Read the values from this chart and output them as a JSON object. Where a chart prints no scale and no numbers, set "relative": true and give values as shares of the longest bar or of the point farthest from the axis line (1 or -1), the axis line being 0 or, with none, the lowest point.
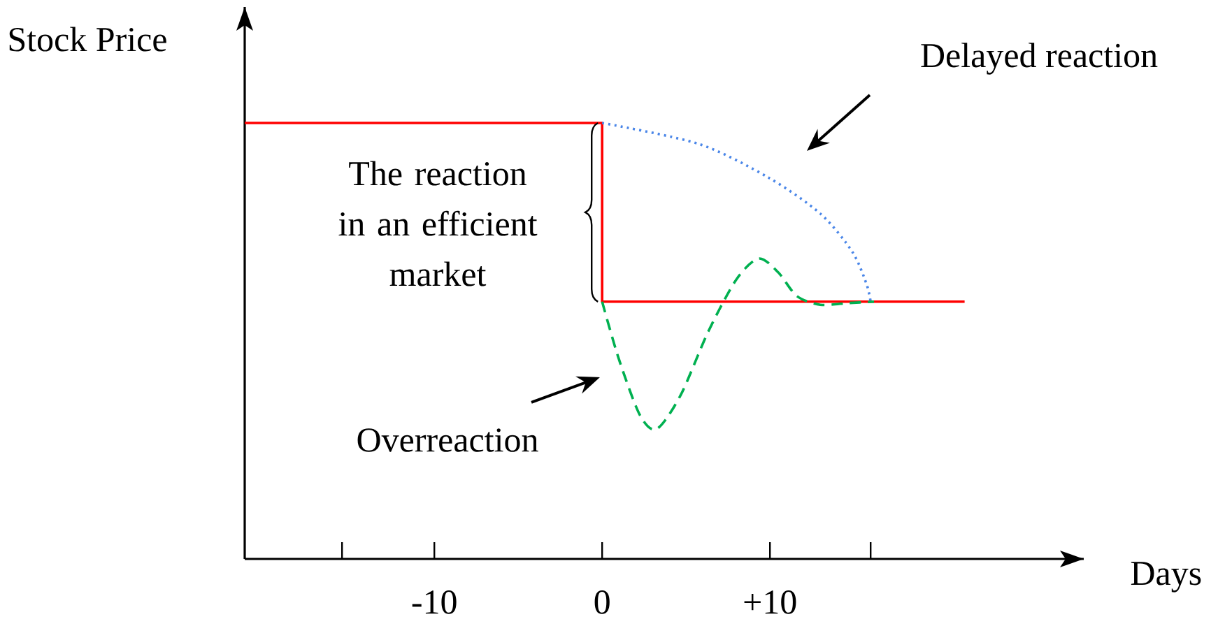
{
  "chart_data": {
    "type": "line",
    "relative": true,
    "xlabel": "Days",
    "ylabel": "Stock Price",
    "xlim": [
      -21.3,
      28.7
    ],
    "xticks": [
      {
        "value": -15.5,
        "label": null
      },
      -10,
      0,
      {
        "value": 10,
        "label": "+10"
      },
      {
        "value": 16,
        "label": null
      }
    ],
    "series": [
      {
        "color": "#ff0000",
        "line_style": "solid",
        "x": [
          -21.3,
          0,
          0,
          21.6
        ],
        "values": [
          1,
          1,
          0.59,
          0.59
        ]
      },
      {
        "color": "#4a86e8",
        "line_style": "dotted",
        "x": [
          0,
          5.75,
          9.9,
          13,
          14.9,
          15.75,
          16
        ],
        "values": [
          1,
          0.952,
          0.875,
          0.792,
          0.705,
          0.631,
          0.59
        ]
      },
      {
        "color": "#00b050",
        "line_style": "dashed",
        "x": [
          0,
          1,
          2.25,
          3.25,
          4.67,
          6.33,
          8,
          9.33,
          10.5,
          11.6,
          13,
          14.7,
          16.2
        ],
        "values": [
          0.59,
          0.458,
          0.33,
          0.298,
          0.375,
          0.522,
          0.641,
          0.689,
          0.657,
          0.603,
          0.583,
          0.587,
          0.59
        ]
      }
    ],
    "annotations": [
      "The reaction in an efficient market",
      "Delayed reaction",
      "Overreaction"
    ]
  }
}
